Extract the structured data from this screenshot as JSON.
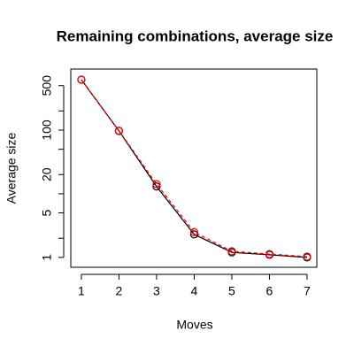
{
  "chart_data": {
    "type": "line",
    "title": "Remaining combinations, average size",
    "xlabel": "Moves",
    "ylabel": "Average size",
    "x": [
      1,
      2,
      3,
      4,
      5,
      6,
      7
    ],
    "series": [
      {
        "color": "#000000",
        "dash": false,
        "values": [
          620,
          97,
          13,
          2.3,
          1.2,
          1.1,
          1.0
        ]
      },
      {
        "color": "#ff0000",
        "dash": true,
        "values": [
          620,
          98,
          14.2,
          2.5,
          1.25,
          1.13,
          1.03
        ]
      }
    ],
    "xlim": [
      0.72,
      7.26
    ],
    "ylim": [
      0.7,
      910
    ],
    "log_y": true,
    "xticks": [
      1,
      2,
      3,
      4,
      5,
      6,
      7
    ],
    "yticks": [
      1,
      5,
      20,
      100,
      500
    ],
    "yminorticks": [
      2,
      10,
      50,
      200
    ]
  }
}
